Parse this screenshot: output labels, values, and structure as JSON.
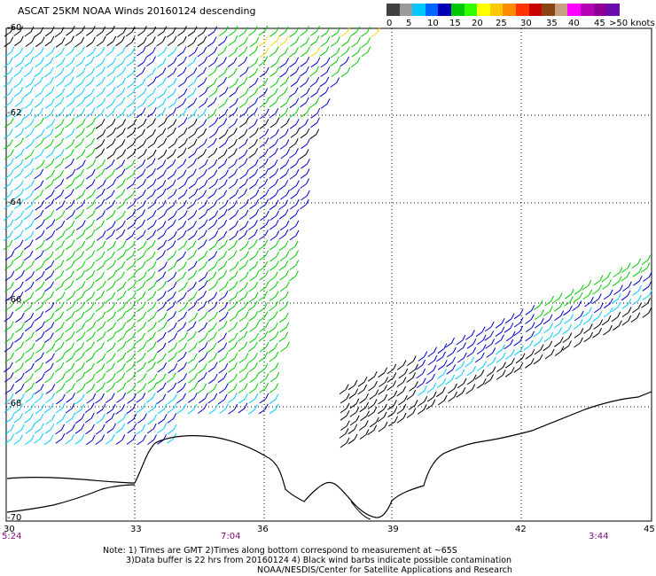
{
  "title": "ASCAT 25KM NOAA Winds 20160124 descending",
  "legend": {
    "ticks": [
      "0",
      "5",
      "10",
      "15",
      "20",
      "25",
      "30",
      "35",
      "40",
      "45",
      ">50 knots"
    ],
    "colors": [
      "#404040",
      "#9a9a9a",
      "#00c8ff",
      "#0064ff",
      "#0000b4",
      "#00c800",
      "#32ff00",
      "#ffff00",
      "#ffc800",
      "#ff8c00",
      "#ff3200",
      "#c80000",
      "#8b4513",
      "#c8a080",
      "#ff00ff",
      "#b400b4",
      "#8c0096",
      "#6a0dad"
    ]
  },
  "axes": {
    "lat_labels": [
      "-60",
      "-62",
      "-64",
      "-66",
      "-68",
      "-70"
    ],
    "lon_labels": [
      "30",
      "33",
      "36",
      "39",
      "42",
      "45"
    ]
  },
  "pass_times": [
    "5:24",
    "7:04",
    "3:44"
  ],
  "notes": [
    "Note: 1) Times are GMT 2)Times along bottom correspond to measurement at ~65S",
    "3)Data buffer is 22 hrs from 20160124 4) Black wind barbs indicate possible contamination",
    "NOAA/NESDIS/Center for Satellite Applications and Research"
  ],
  "colors": {
    "light_blue": "#00c8ff",
    "blue": "#0000c8",
    "green": "#00c800",
    "yellow": "#ffd800",
    "contaminated": "#000000"
  }
}
